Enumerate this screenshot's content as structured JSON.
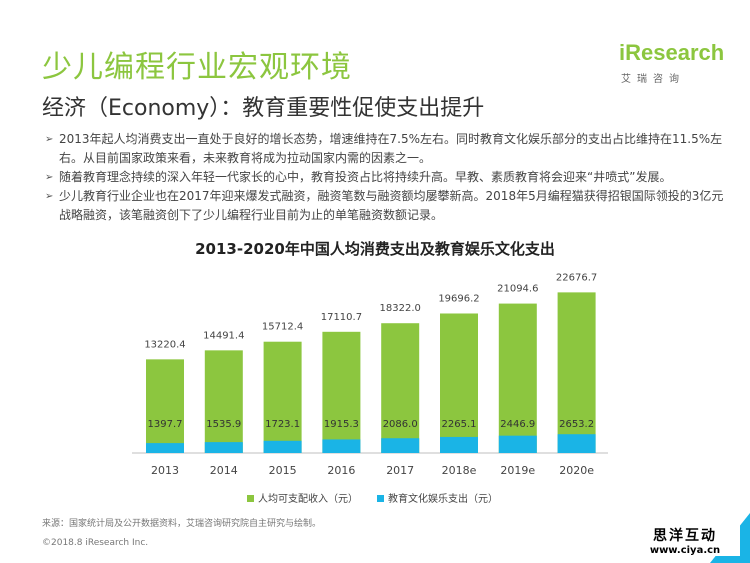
{
  "header": {
    "title": "少儿编程行业宏观环境",
    "subtitle": "经济（Economy）：教育重要性促使支出提升",
    "logo_text": "iResearch",
    "logo_sub": "艾瑞咨询"
  },
  "bullets": [
    "2013年起人均消费支出一直处于良好的增长态势，增速维持在7.5%左右。同时教育文化娱乐部分的支出占比维持在11.5%左右。从目前国家政策来看，未来教育将成为拉动国家内需的因素之一。",
    "随着教育理念持续的深入年轻一代家长的心中，教育投资占比将持续升高。早教、素质教育将会迎来“井喷式”发展。",
    "少儿教育行业企业也在2017年迎来爆发式融资，融资笔数与融资额均屡攀新高。2018年5月编程猫获得招银国际领投的3亿元战略融资，该笔融资创下了少儿编程行业目前为止的单笔融资数额记录。"
  ],
  "footer": {
    "source": "来源：国家统计局及公开数据资料，艾瑞咨询研究院自主研究与绘制。",
    "copyright": "©2018.8  iResearch Inc."
  },
  "watermark": {
    "line1": "思洋互动",
    "line2": "www.ciya.cn"
  },
  "colors": {
    "accent_green": "#8cc63f",
    "accent_blue": "#1ab4e6"
  },
  "chart_data": {
    "type": "bar",
    "title": "2013-2020年中国人均消费支出及教育娱乐文化支出",
    "categories": [
      "2013",
      "2014",
      "2015",
      "2016",
      "2017",
      "2018e",
      "2019e",
      "2020e"
    ],
    "series": [
      {
        "name": "人均可支配收入（元）",
        "color": "#8cc63f",
        "values": [
          13220.4,
          14491.4,
          15712.4,
          17110.7,
          18322.0,
          19696.2,
          21094.6,
          22676.7
        ],
        "labels": [
          "13220.4",
          "14491.4",
          "15712.4",
          "17110.7",
          "18322.0",
          "19696.2",
          "21094.6",
          "22676.7"
        ]
      },
      {
        "name": "教育文化娱乐支出（元）",
        "color": "#1ab4e6",
        "values": [
          1397.7,
          1535.9,
          1723.1,
          1915.3,
          2086.0,
          2265.1,
          2446.9,
          2653.2
        ],
        "labels": [
          "1397.7",
          "1535.9",
          "1723.1",
          "1915.3",
          "2086.0",
          "2265.1",
          "2446.9",
          "2653.2"
        ]
      }
    ],
    "overlap": true,
    "legend_position": "bottom",
    "grid": false,
    "ylim": [
      0,
      25000
    ]
  }
}
